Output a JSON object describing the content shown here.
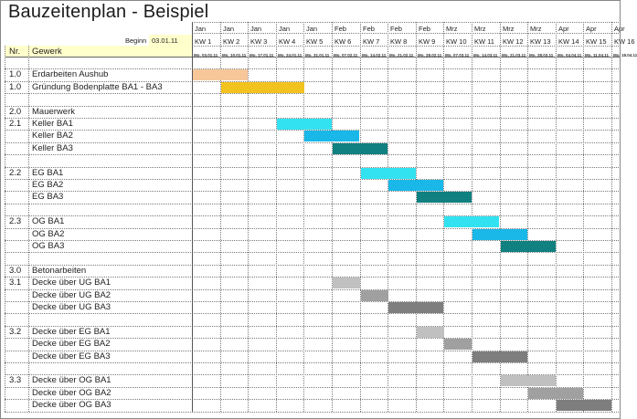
{
  "title": "Bauzeitenplan - Beispiel",
  "beginn_label": "Beginn",
  "beginn_date": "03.01.11",
  "col_nr": "Nr.",
  "col_gewerk": "Gewerk",
  "weeks": [
    {
      "month": "Jan",
      "kw": "KW 1",
      "date": "Mo, 03.01.11"
    },
    {
      "month": "Jan",
      "kw": "KW 2",
      "date": "Mo, 10.01.11"
    },
    {
      "month": "Jan",
      "kw": "KW 3",
      "date": "Mo, 17.01.11"
    },
    {
      "month": "Jan",
      "kw": "KW 4",
      "date": "Mo, 24.01.11"
    },
    {
      "month": "Jan",
      "kw": "KW 5",
      "date": "Mo, 31.01.11"
    },
    {
      "month": "Feb",
      "kw": "KW 6",
      "date": "Mo, 07.02.11"
    },
    {
      "month": "Feb",
      "kw": "KW 7",
      "date": "Mo, 14.02.11"
    },
    {
      "month": "Feb",
      "kw": "KW 8",
      "date": "Mo, 21.02.11"
    },
    {
      "month": "Feb",
      "kw": "KW 9",
      "date": "Mo, 28.02.11"
    },
    {
      "month": "Mrz",
      "kw": "KW 10",
      "date": "Mo, 07.03.11"
    },
    {
      "month": "Mrz",
      "kw": "KW 11",
      "date": "Mo, 14.03.11"
    },
    {
      "month": "Mrz",
      "kw": "KW 12",
      "date": "Mo, 21.03.11"
    },
    {
      "month": "Mrz",
      "kw": "KW 13",
      "date": "Mo, 28.03.11"
    },
    {
      "month": "Apr",
      "kw": "KW 14",
      "date": "Mo, 04.04.11"
    },
    {
      "month": "Apr",
      "kw": "KW 15",
      "date": "Mo, 11.04.11"
    },
    {
      "month": "Apr",
      "kw": "KW 16",
      "date": "Mo, 18.04.11"
    }
  ],
  "rows": [
    {
      "nr": "",
      "task": "",
      "bars": []
    },
    {
      "nr": "1.0",
      "task": "Erdarbeiten Aushub",
      "bars": [
        {
          "start": 0,
          "len": 2,
          "color": "#f7c79a"
        }
      ]
    },
    {
      "nr": "1.0",
      "task": "Gründung Bodenplatte BA1 - BA3",
      "bars": [
        {
          "start": 1,
          "len": 3,
          "color": "#f2c21e"
        }
      ]
    },
    {
      "nr": "",
      "task": "",
      "bars": []
    },
    {
      "nr": "2.0",
      "task": "Mauerwerk",
      "bars": []
    },
    {
      "nr": "2.1",
      "task": "Keller BA1",
      "bars": [
        {
          "start": 3,
          "len": 2,
          "color": "#33e2f0"
        }
      ]
    },
    {
      "nr": "",
      "task": "Keller BA2",
      "bars": [
        {
          "start": 4,
          "len": 2,
          "color": "#19b8e8"
        }
      ]
    },
    {
      "nr": "",
      "task": "Keller BA3",
      "bars": [
        {
          "start": 5,
          "len": 2,
          "color": "#118080"
        }
      ]
    },
    {
      "nr": "",
      "task": "",
      "bars": []
    },
    {
      "nr": "2.2",
      "task": "EG BA1",
      "bars": [
        {
          "start": 6,
          "len": 2,
          "color": "#33e2f0"
        }
      ]
    },
    {
      "nr": "",
      "task": "EG BA2",
      "bars": [
        {
          "start": 7,
          "len": 2,
          "color": "#19b8e8"
        }
      ]
    },
    {
      "nr": "",
      "task": "EG BA3",
      "bars": [
        {
          "start": 8,
          "len": 2,
          "color": "#118080"
        }
      ]
    },
    {
      "nr": "",
      "task": "",
      "bars": []
    },
    {
      "nr": "2.3",
      "task": "OG BA1",
      "bars": [
        {
          "start": 9,
          "len": 2,
          "color": "#33e2f0"
        }
      ]
    },
    {
      "nr": "",
      "task": "OG BA2",
      "bars": [
        {
          "start": 10,
          "len": 2,
          "color": "#19b8e8"
        }
      ]
    },
    {
      "nr": "",
      "task": "OG BA3",
      "bars": [
        {
          "start": 11,
          "len": 2,
          "color": "#118080"
        }
      ]
    },
    {
      "nr": "",
      "task": "",
      "bars": []
    },
    {
      "nr": "3.0",
      "task": "Betonarbeiten",
      "bars": []
    },
    {
      "nr": "3.1",
      "task": "Decke über UG BA1",
      "bars": [
        {
          "start": 5,
          "len": 1,
          "color": "#c0c0c0"
        }
      ]
    },
    {
      "nr": "",
      "task": "Decke über UG BA2",
      "bars": [
        {
          "start": 6,
          "len": 1,
          "color": "#a0a0a0"
        }
      ]
    },
    {
      "nr": "",
      "task": "Decke über UG BA3",
      "bars": [
        {
          "start": 7,
          "len": 2,
          "color": "#7e7e7e"
        }
      ]
    },
    {
      "nr": "",
      "task": "",
      "bars": []
    },
    {
      "nr": "3.2",
      "task": "Decke über EG BA1",
      "bars": [
        {
          "start": 8,
          "len": 1,
          "color": "#c0c0c0"
        }
      ]
    },
    {
      "nr": "",
      "task": "Decke über EG BA2",
      "bars": [
        {
          "start": 9,
          "len": 1,
          "color": "#a0a0a0"
        }
      ]
    },
    {
      "nr": "",
      "task": "Decke über EG BA3",
      "bars": [
        {
          "start": 10,
          "len": 2,
          "color": "#7e7e7e"
        }
      ]
    },
    {
      "nr": "",
      "task": "",
      "bars": []
    },
    {
      "nr": "3.3",
      "task": "Decke über OG BA1",
      "bars": [
        {
          "start": 11,
          "len": 2,
          "color": "#c0c0c0"
        }
      ]
    },
    {
      "nr": "",
      "task": "Decke über OG BA2",
      "bars": [
        {
          "start": 12,
          "len": 2,
          "color": "#a0a0a0"
        }
      ]
    },
    {
      "nr": "",
      "task": "Decke über OG BA3",
      "bars": [
        {
          "start": 13,
          "len": 2,
          "color": "#7e7e7e"
        }
      ]
    }
  ]
}
